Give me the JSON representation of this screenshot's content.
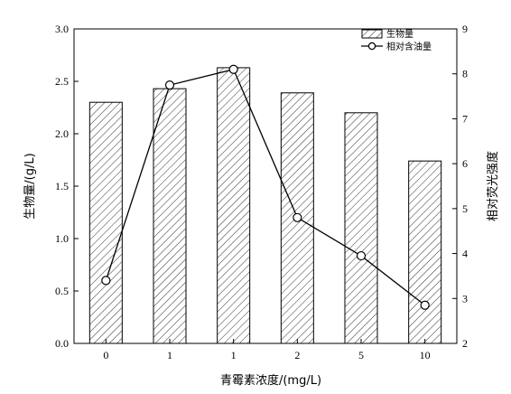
{
  "chart_data": {
    "type": "bar",
    "categories": [
      "0",
      "1",
      "1",
      "2",
      "5",
      "10"
    ],
    "xlabel": "青霉素浓度/(mg/L)",
    "ylabel": "生物量/(g/L)",
    "y2label": "相对荧光强度",
    "ylim": [
      0,
      3.0
    ],
    "y2lim": [
      2,
      9
    ],
    "yticks": [
      "0.0",
      "0.5",
      "1.0",
      "1.5",
      "2.0",
      "2.5",
      "3.0"
    ],
    "y2ticks": [
      "2",
      "3",
      "4",
      "5",
      "6",
      "7",
      "8",
      "9"
    ],
    "series": [
      {
        "name": "生物量",
        "type": "bar",
        "pattern": "hatched",
        "axis": "left",
        "values": [
          2.3,
          2.43,
          2.63,
          2.39,
          2.2,
          1.74
        ]
      },
      {
        "name": "相对含油量",
        "type": "line",
        "marker": "open-circle",
        "axis": "right",
        "values": [
          3.4,
          7.75,
          8.1,
          4.8,
          3.95,
          2.85
        ]
      }
    ],
    "legend": {
      "position": "top-right",
      "items": [
        "生物量",
        "相对含油量"
      ]
    },
    "grid": false
  }
}
